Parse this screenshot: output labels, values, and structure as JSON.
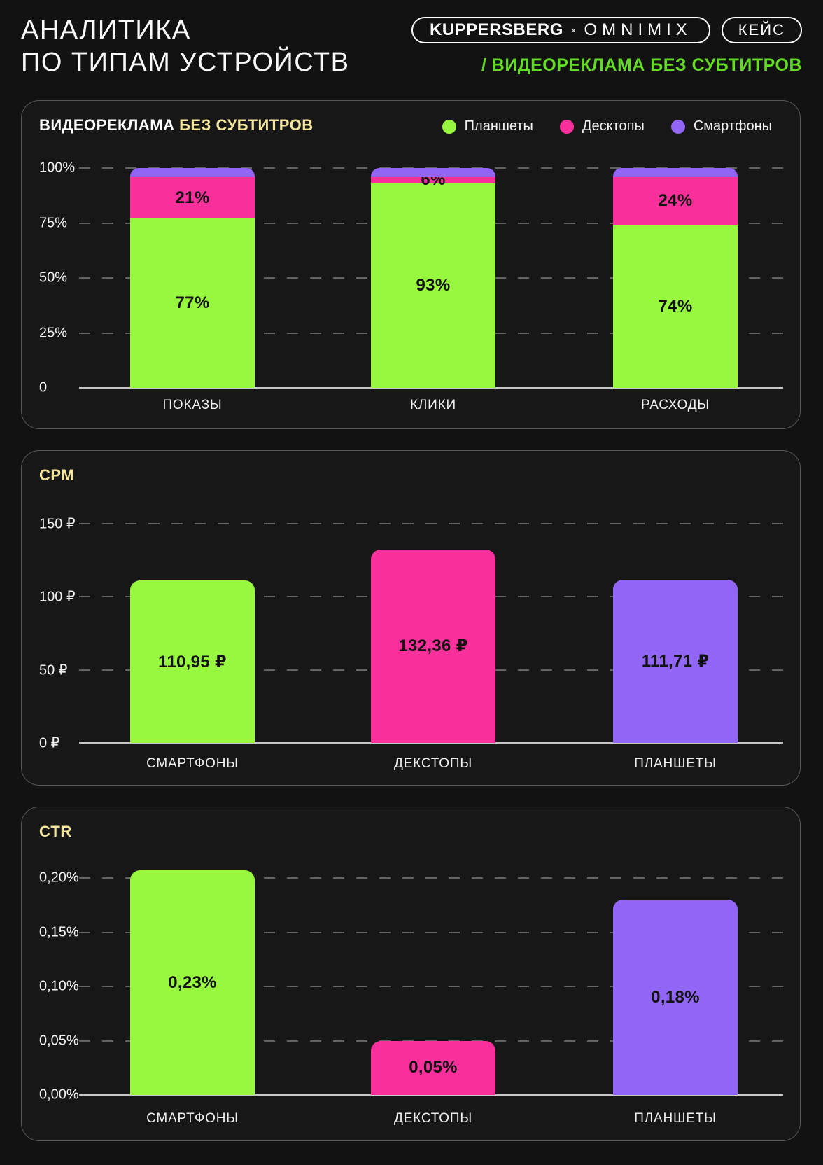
{
  "header": {
    "title_line1": "АНАЛИТИКА",
    "title_line2": "ПО ТИПАМ УСТРОЙСТВ",
    "brand_badge": {
      "left": "KUPPERSBERG",
      "separator": "×",
      "right": "OMNIMIX"
    },
    "case_badge": "КЕЙС",
    "subtitle": "/ ВИДЕОРЕКЛАМА БЕЗ СУБТИТРОВ"
  },
  "colors": {
    "green": "#97F83F",
    "pink": "#F9309B",
    "purple": "#9165F5",
    "yellow": "#F3E59A",
    "subtitle_green": "#63DB22",
    "page_bg": "#121213",
    "panel_bg": "#171718",
    "panel_border": "#55585C",
    "grid": "rgba(255,255,255,0.33)",
    "axis_line": "#C7C7C9",
    "bar_label": "#121212",
    "text": "#F2F2F2"
  },
  "legend": [
    {
      "label": "Планшеты",
      "color": "green"
    },
    {
      "label": "Десктопы",
      "color": "pink"
    },
    {
      "label": "Смартфоны",
      "color": "purple"
    }
  ],
  "chart_data": [
    {
      "type": "bar",
      "stacked": true,
      "title": "ВИДЕОРЕКЛАМА",
      "title_accent": "БЕЗ СУБТИТРОВ",
      "categories": [
        "ПОКАЗЫ",
        "КЛИКИ",
        "РАСХОДЫ"
      ],
      "series": [
        {
          "name": "Планшеты",
          "color": "green",
          "values": [
            77,
            93,
            74
          ],
          "labels": [
            "77%",
            "93%",
            "74%"
          ]
        },
        {
          "name": "Десктопы",
          "color": "pink",
          "values": [
            21,
            6,
            24
          ],
          "labels": [
            "21%",
            "6%",
            "24%"
          ]
        },
        {
          "name": "Смартфоны",
          "color": "purple",
          "values": [
            2,
            1,
            2
          ],
          "labels": [
            "",
            "",
            ""
          ]
        }
      ],
      "y_ticks": [
        {
          "label": "100%",
          "value": 100
        },
        {
          "label": "75%",
          "value": 75
        },
        {
          "label": "50%",
          "value": 50
        },
        {
          "label": "25%",
          "value": 25
        },
        {
          "label": "0",
          "value": 0
        }
      ],
      "ylim": [
        0,
        100
      ],
      "grid": "horizontal dashed",
      "legend_position": "top-right"
    },
    {
      "type": "bar",
      "title": "CPM",
      "categories": [
        "СМАРТФОНЫ",
        "ДЕКСТОПЫ",
        "ПЛАНШЕТЫ"
      ],
      "values": [
        110.95,
        132.36,
        111.71
      ],
      "labels": [
        "110,95 ₽",
        "132,36 ₽",
        "111,71 ₽"
      ],
      "bar_colors": [
        "green",
        "pink",
        "purple"
      ],
      "y_ticks": [
        {
          "label": "150 ₽",
          "value": 150
        },
        {
          "label": "100 ₽",
          "value": 100
        },
        {
          "label": "50 ₽",
          "value": 50
        },
        {
          "label": "0 ₽",
          "value": 0
        }
      ],
      "ylim": [
        0,
        150
      ],
      "unit": "₽",
      "grid": "horizontal dashed"
    },
    {
      "type": "bar",
      "title": "CTR",
      "categories": [
        "СМАРТФОНЫ",
        "ДЕКСТОПЫ",
        "ПЛАНШЕТЫ"
      ],
      "values": [
        0.23,
        0.05,
        0.18
      ],
      "labels": [
        "0,23%",
        "0,05%",
        "0,18%"
      ],
      "bar_colors": [
        "green",
        "pink",
        "purple"
      ],
      "y_ticks": [
        {
          "label": "0,20%",
          "value": 0.2
        },
        {
          "label": "0,15%",
          "value": 0.15
        },
        {
          "label": "0,10%",
          "value": 0.1
        },
        {
          "label": "0,05%",
          "value": 0.05
        },
        {
          "label": "0,00%",
          "value": 0
        }
      ],
      "ylim": [
        0,
        0.21
      ],
      "unit": "%",
      "grid": "horizontal dashed"
    }
  ]
}
